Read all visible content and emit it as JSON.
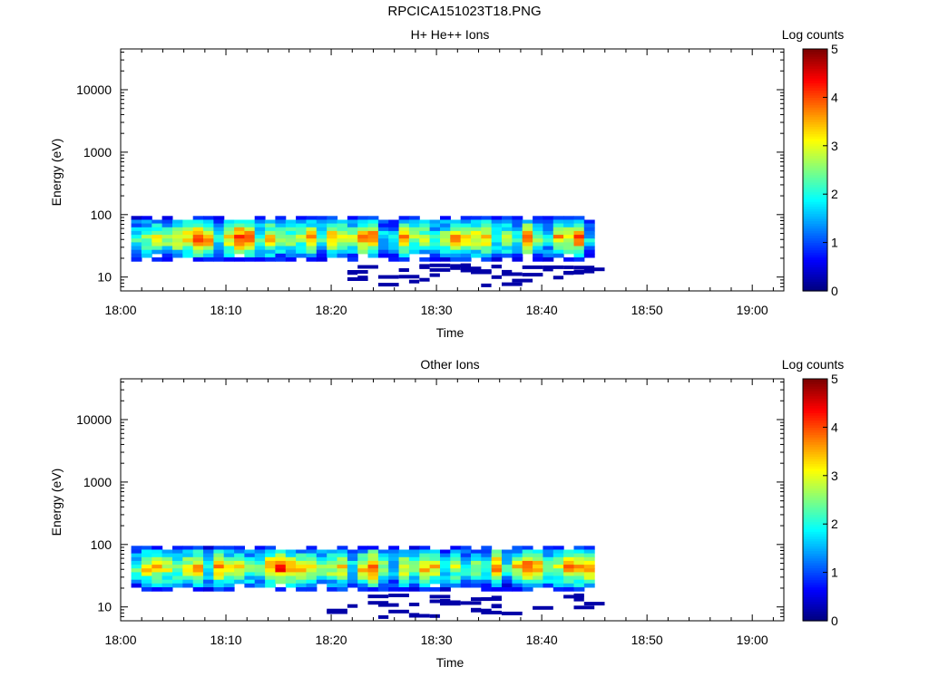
{
  "figure_title": "RPCICA151023T18.PNG",
  "chart_data": [
    {
      "type": "heatmap",
      "title": "H+ He++ Ions",
      "xlabel": "Time",
      "ylabel": "Energy (eV)",
      "y_scale": "log",
      "xlim": [
        "18:00",
        "19:03"
      ],
      "ylim": [
        6,
        45000
      ],
      "x_tick_labels": [
        "18:00",
        "18:10",
        "18:20",
        "18:30",
        "18:40",
        "18:50",
        "19:00"
      ],
      "y_tick_labels": [
        "10",
        "100",
        "1000",
        "10000"
      ],
      "data_time_range": [
        "18:00",
        "18:45"
      ],
      "colorbar": {
        "label": "Log counts",
        "range": [
          0,
          5
        ],
        "ticks": [
          "0",
          "1",
          "2",
          "3",
          "4",
          "5"
        ]
      },
      "seed": 11
    },
    {
      "type": "heatmap",
      "title": "Other Ions",
      "xlabel": "Time",
      "ylabel": "Energy (eV)",
      "y_scale": "log",
      "xlim": [
        "18:00",
        "19:03"
      ],
      "ylim": [
        6,
        45000
      ],
      "x_tick_labels": [
        "18:00",
        "18:10",
        "18:20",
        "18:30",
        "18:40",
        "18:50",
        "19:00"
      ],
      "y_tick_labels": [
        "10",
        "100",
        "1000",
        "10000"
      ],
      "data_time_range": [
        "18:00",
        "18:45"
      ],
      "colorbar": {
        "label": "Log counts",
        "range": [
          0,
          5
        ],
        "ticks": [
          "0",
          "1",
          "2",
          "3",
          "4",
          "5"
        ]
      },
      "seed": 29
    }
  ]
}
